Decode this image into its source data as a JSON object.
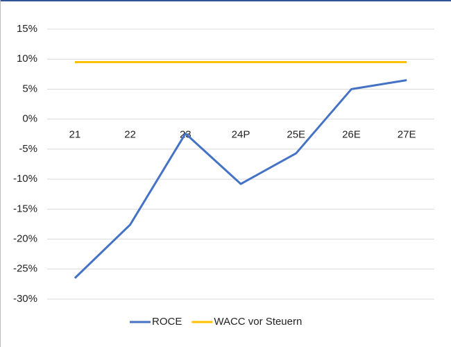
{
  "chart_data": {
    "type": "line",
    "categories": [
      "21",
      "22",
      "23",
      "24P",
      "25E",
      "26E",
      "27E"
    ],
    "series": [
      {
        "name": "ROCE",
        "color": "#4472c4",
        "values": [
          -26.5,
          -17.6,
          -2.4,
          -10.8,
          -5.7,
          5.0,
          6.5
        ]
      },
      {
        "name": "WACC vor Steuern",
        "color": "#ffc000",
        "values": [
          9.5,
          9.5,
          9.5,
          9.5,
          9.5,
          9.5,
          9.5
        ]
      }
    ],
    "ylim": [
      -30,
      15
    ],
    "yticks": [
      {
        "value": -30,
        "label": "-30%"
      },
      {
        "value": -25,
        "label": "-25%"
      },
      {
        "value": -20,
        "label": "-20%"
      },
      {
        "value": -15,
        "label": "-15%"
      },
      {
        "value": -10,
        "label": "-10%"
      },
      {
        "value": -5,
        "label": "-5%"
      },
      {
        "value": 0,
        "label": "0%"
      },
      {
        "value": 5,
        "label": "5%"
      },
      {
        "value": 10,
        "label": "10%"
      },
      {
        "value": 15,
        "label": "15%"
      }
    ],
    "grid": true,
    "legend": "bottom"
  }
}
